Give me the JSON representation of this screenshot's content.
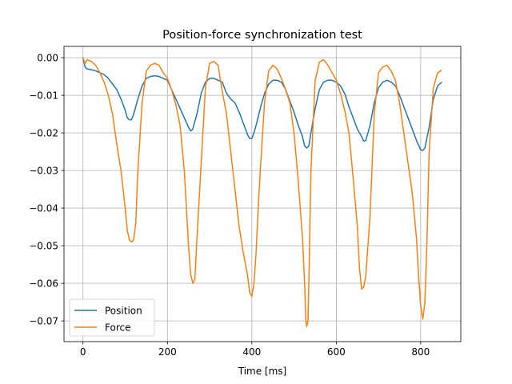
{
  "chart_data": {
    "type": "line",
    "title": "Position-force synchronization test",
    "xlabel": "Time [ms]",
    "ylabel": "",
    "xlim": [
      -45,
      895
    ],
    "ylim": [
      -0.0755,
      0.003
    ],
    "xticks": [
      0,
      200,
      400,
      600,
      800
    ],
    "xtick_labels": [
      "0",
      "200",
      "400",
      "600",
      "800"
    ],
    "yticks": [
      0.0,
      -0.01,
      -0.02,
      -0.03,
      -0.04,
      -0.05,
      -0.06,
      -0.07
    ],
    "ytick_labels": [
      "0.00",
      "−0.01",
      "−0.02",
      "−0.03",
      "−0.04",
      "−0.05",
      "−0.06",
      "−0.07"
    ],
    "grid": true,
    "legend_position": "lower-left",
    "series": [
      {
        "name": "Position",
        "color": "#1f77b4",
        "x": [
          0,
          5,
          10,
          20,
          30,
          40,
          50,
          60,
          70,
          80,
          90,
          100,
          105,
          110,
          115,
          120,
          130,
          140,
          150,
          160,
          170,
          180,
          190,
          200,
          210,
          220,
          230,
          240,
          250,
          255,
          260,
          270,
          280,
          290,
          300,
          310,
          320,
          330,
          340,
          350,
          360,
          370,
          380,
          390,
          395,
          400,
          405,
          410,
          420,
          430,
          440,
          450,
          460,
          470,
          480,
          490,
          500,
          510,
          520,
          525,
          530,
          535,
          540,
          550,
          560,
          570,
          580,
          590,
          600,
          610,
          620,
          630,
          640,
          650,
          660,
          665,
          670,
          680,
          690,
          700,
          710,
          720,
          730,
          740,
          750,
          760,
          770,
          780,
          790,
          800,
          805,
          810,
          820,
          830,
          840,
          850
        ],
        "y": [
          0.0,
          -0.0025,
          -0.003,
          -0.0032,
          -0.0035,
          -0.004,
          -0.0045,
          -0.0055,
          -0.007,
          -0.0085,
          -0.011,
          -0.014,
          -0.016,
          -0.0165,
          -0.0165,
          -0.015,
          -0.011,
          -0.0075,
          -0.0055,
          -0.005,
          -0.0048,
          -0.005,
          -0.0055,
          -0.006,
          -0.0085,
          -0.011,
          -0.0135,
          -0.016,
          -0.0185,
          -0.0195,
          -0.019,
          -0.015,
          -0.0095,
          -0.0065,
          -0.0055,
          -0.0055,
          -0.006,
          -0.0065,
          -0.0095,
          -0.011,
          -0.012,
          -0.0145,
          -0.0175,
          -0.0205,
          -0.0215,
          -0.0215,
          -0.02,
          -0.018,
          -0.0135,
          -0.0095,
          -0.007,
          -0.006,
          -0.006,
          -0.0065,
          -0.0085,
          -0.0115,
          -0.0145,
          -0.018,
          -0.021,
          -0.0235,
          -0.024,
          -0.0235,
          -0.02,
          -0.0135,
          -0.0085,
          -0.0065,
          -0.006,
          -0.006,
          -0.0065,
          -0.0075,
          -0.0095,
          -0.013,
          -0.016,
          -0.019,
          -0.021,
          -0.0222,
          -0.022,
          -0.018,
          -0.012,
          -0.008,
          -0.0065,
          -0.006,
          -0.0065,
          -0.0075,
          -0.01,
          -0.013,
          -0.016,
          -0.019,
          -0.022,
          -0.0245,
          -0.0247,
          -0.024,
          -0.0185,
          -0.011,
          -0.0075,
          -0.0065
        ]
      },
      {
        "name": "Force",
        "color": "#ff7f0e",
        "x": [
          0,
          5,
          10,
          15,
          20,
          30,
          40,
          50,
          60,
          70,
          80,
          90,
          95,
          100,
          105,
          110,
          115,
          120,
          125,
          130,
          140,
          150,
          160,
          170,
          180,
          190,
          200,
          210,
          220,
          230,
          240,
          245,
          250,
          255,
          260,
          265,
          270,
          280,
          290,
          300,
          310,
          320,
          330,
          340,
          350,
          360,
          370,
          380,
          390,
          395,
          400,
          405,
          410,
          415,
          420,
          430,
          440,
          450,
          460,
          470,
          480,
          490,
          500,
          510,
          520,
          525,
          528,
          530,
          533,
          535,
          540,
          550,
          560,
          570,
          580,
          590,
          600,
          610,
          620,
          630,
          640,
          650,
          655,
          660,
          665,
          670,
          680,
          690,
          700,
          710,
          720,
          730,
          740,
          750,
          760,
          770,
          780,
          790,
          795,
          800,
          805,
          810,
          815,
          820,
          830,
          840,
          850
        ],
        "y": [
          0.0,
          -0.0015,
          -0.0005,
          -0.0008,
          -0.001,
          -0.002,
          -0.004,
          -0.0065,
          -0.01,
          -0.015,
          -0.023,
          -0.03,
          -0.035,
          -0.04,
          -0.046,
          -0.0485,
          -0.049,
          -0.0485,
          -0.044,
          -0.03,
          -0.012,
          -0.0035,
          -0.002,
          -0.0015,
          -0.002,
          -0.004,
          -0.0055,
          -0.0085,
          -0.0125,
          -0.018,
          -0.03,
          -0.04,
          -0.05,
          -0.0575,
          -0.06,
          -0.059,
          -0.048,
          -0.028,
          -0.008,
          -0.0015,
          -0.001,
          -0.002,
          -0.009,
          -0.015,
          -0.025,
          -0.035,
          -0.045,
          -0.052,
          -0.058,
          -0.0625,
          -0.0635,
          -0.06,
          -0.052,
          -0.04,
          -0.03,
          -0.012,
          -0.0035,
          -0.002,
          -0.003,
          -0.0055,
          -0.0085,
          -0.012,
          -0.02,
          -0.033,
          -0.048,
          -0.06,
          -0.07,
          -0.0715,
          -0.07,
          -0.06,
          -0.03,
          -0.006,
          -0.0012,
          -0.0005,
          -0.002,
          -0.004,
          -0.006,
          -0.0095,
          -0.014,
          -0.02,
          -0.032,
          -0.045,
          -0.056,
          -0.0615,
          -0.061,
          -0.058,
          -0.042,
          -0.015,
          -0.004,
          -0.0025,
          -0.002,
          -0.0035,
          -0.006,
          -0.012,
          -0.02,
          -0.028,
          -0.036,
          -0.048,
          -0.058,
          -0.066,
          -0.0695,
          -0.065,
          -0.048,
          -0.025,
          -0.008,
          -0.004,
          -0.0033
        ]
      }
    ]
  }
}
